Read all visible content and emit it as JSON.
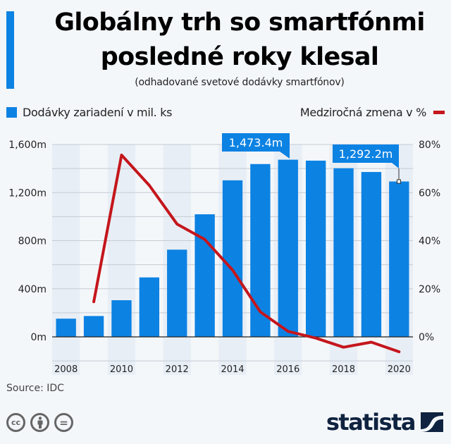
{
  "header": {
    "title_line1": "Globálny trh so smartfónmi",
    "title_line2": "posledné roky klesal",
    "subtitle": "(odhadované svetové dodávky smartfónov)"
  },
  "legend": {
    "bars_label": "Dodávky zariadení v mil. ks",
    "line_label": "Medziročná zmena v %"
  },
  "footer": {
    "source": "Source: IDC",
    "license_icons": [
      "cc-icon",
      "by-attribution-icon",
      "no-derivatives-icon"
    ],
    "cc_text": "cc",
    "nd_text": "=",
    "brand": "statista"
  },
  "colors": {
    "bar": "#0c82e3",
    "line": "#c4161c",
    "band": "#e8eef5",
    "background": "#f4f7fa",
    "brand": "#0f2340"
  },
  "chart_data": {
    "type": "bar+line",
    "categories": [
      "2008",
      "2009",
      "2010",
      "2011",
      "2012",
      "2013",
      "2014",
      "2015",
      "2016",
      "2017",
      "2018",
      "2019",
      "2020"
    ],
    "x_tick_labels": [
      "2008",
      "2010",
      "2012",
      "2014",
      "2016",
      "2018",
      "2020"
    ],
    "series": [
      {
        "name": "Dodávky zariadení v mil. ks",
        "type": "bar",
        "axis": "left",
        "values": [
          151.4,
          173.5,
          304.7,
          494.5,
          725.3,
          1019.4,
          1301.7,
          1437.2,
          1473.4,
          1465.5,
          1402.6,
          1371.1,
          1292.2
        ]
      },
      {
        "name": "Medziročná zmena v %",
        "type": "line",
        "axis": "right",
        "values": [
          null,
          14.6,
          75.6,
          63.0,
          46.9,
          40.5,
          27.8,
          10.4,
          2.3,
          -0.5,
          -4.3,
          -2.2,
          -6.2
        ]
      }
    ],
    "left_axis": {
      "ylim": [
        -200,
        1600
      ],
      "ticks": [
        0,
        400,
        800,
        1200,
        1600
      ],
      "tick_labels": [
        "0m",
        "400m",
        "800m",
        "1,200m",
        "1,600m"
      ],
      "gridlines": [
        -200,
        0,
        200,
        400,
        600,
        800,
        1000,
        1200,
        1400,
        1600
      ]
    },
    "right_axis": {
      "ylim": [
        -10,
        80
      ],
      "ticks": [
        0,
        20,
        40,
        60,
        80
      ],
      "tick_labels": [
        "0%",
        "20%",
        "40%",
        "60%",
        "80%"
      ]
    },
    "annotations": [
      {
        "category": "2016",
        "text": "1,473.4m"
      },
      {
        "category": "2020",
        "text": "1,292.2m"
      }
    ],
    "title": "Globálny trh so smartfónmi posledné roky klesal",
    "subtitle": "(odhadované svetové dodávky smartfónov)",
    "grid": true,
    "legend_position": "top"
  }
}
